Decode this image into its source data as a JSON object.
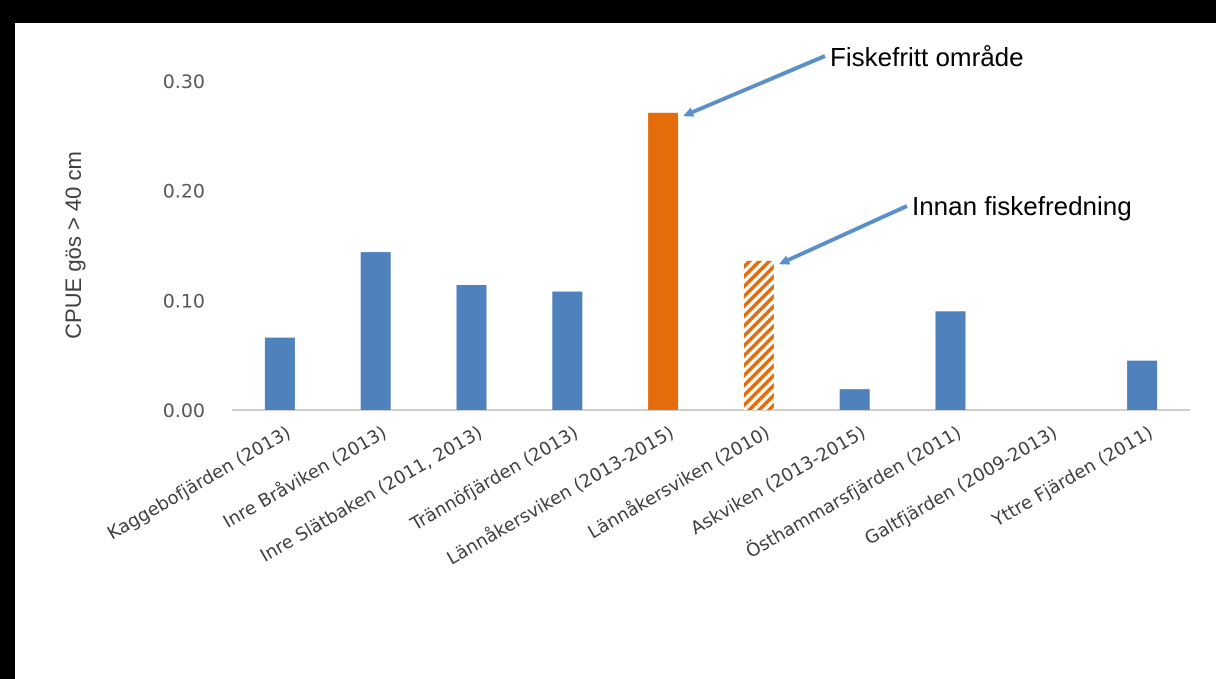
{
  "chart_data": {
    "type": "bar",
    "categories": [
      "Kaggebofjärden (2013)",
      "Inre Bråviken (2013)",
      "Inre Slätbaken (2011, 2013)",
      "Trännöfjärden (2013)",
      "Lännåkersviken (2013-2015)",
      "Lännåkersviken (2010)",
      "Askviken (2013-2015)",
      "Östhammarsfjärden (2011)",
      "Galtfjärden (2009-2013)",
      "Yttre Fjärden (2011)"
    ],
    "values": [
      0.066,
      0.144,
      0.114,
      0.108,
      0.271,
      0.136,
      0.019,
      0.09,
      0.0,
      0.045
    ],
    "bar_styles": [
      "normal",
      "normal",
      "normal",
      "normal",
      "highlight",
      "hatched",
      "normal",
      "normal",
      "normal",
      "normal"
    ],
    "ylabel": "CPUE gös > 40 cm",
    "ylim": [
      0,
      0.3
    ],
    "yticks": [
      "0.00",
      "0.10",
      "0.20",
      "0.30"
    ],
    "grid": false,
    "colors": {
      "normal": "#4f81bd",
      "highlight": "#e46c0a",
      "hatched": "#e46c0a",
      "arrow": "#5b8fc9"
    },
    "annotations": [
      {
        "text": "Fiskefritt område",
        "target_index": 4
      },
      {
        "text": "Innan fiskefredning",
        "target_index": 5
      }
    ]
  }
}
